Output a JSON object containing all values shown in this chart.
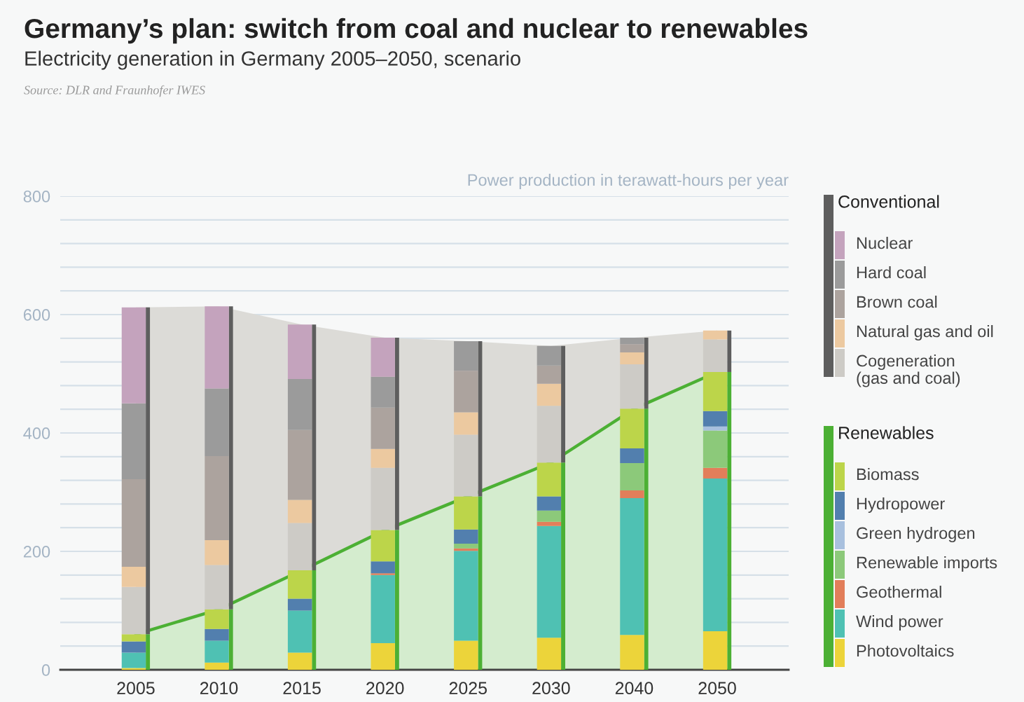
{
  "chart_data": {
    "type": "bar",
    "title": "Germany’s plan: switch from coal and nuclear to renewables",
    "subtitle": "Electricity generation in Germany 2005–2050, scenario",
    "annotations": [
      "Source: DLR and Fraunhofer IWES"
    ],
    "ylabel": "Power production in terawatt-hours per year",
    "categories": [
      "2005",
      "2010",
      "2015",
      "2020",
      "2025",
      "2030",
      "2040",
      "2050"
    ],
    "legend": "right",
    "grid": "y",
    "ylim": [
      0,
      800
    ],
    "yticks": [
      0,
      {
        "value": 40,
        "label": null
      },
      {
        "value": 80,
        "label": null
      },
      {
        "value": 120,
        "label": null
      },
      {
        "value": 160,
        "label": null
      },
      200,
      {
        "value": 240,
        "label": null
      },
      {
        "value": 280,
        "label": null
      },
      {
        "value": 320,
        "label": null
      },
      {
        "value": 360,
        "label": null
      },
      400,
      {
        "value": 440,
        "label": null
      },
      {
        "value": 480,
        "label": null
      },
      {
        "value": 520,
        "label": null
      },
      {
        "value": 560,
        "label": null
      },
      600,
      {
        "value": 640,
        "label": null
      },
      {
        "value": 680,
        "label": null
      },
      {
        "value": 720,
        "label": null
      },
      {
        "value": 760,
        "label": null
      },
      800
    ],
    "series": [
      {
        "type": "area",
        "color": "#dcdbd7",
        "values": [
          612,
          614,
          583,
          561,
          555,
          547,
          561,
          573
        ]
      },
      {
        "type": "area",
        "color": "#4cb034",
        "values": [
          60,
          102,
          168,
          236,
          293,
          350,
          441,
          503
        ]
      },
      {
        "name": "Renewables",
        "type": "bar",
        "color": "#4cb034",
        "values": [
          60,
          102,
          168,
          236,
          293,
          350,
          441,
          503
        ],
        "base": [
          0,
          0,
          0,
          0,
          0,
          0,
          0,
          0
        ]
      },
      {
        "name": "Photovoltaics",
        "color": "#ecd43a",
        "values": [
          3,
          12,
          29,
          45,
          49,
          54,
          59,
          65
        ],
        "base": [
          0,
          0,
          0,
          0,
          0,
          0,
          0,
          0
        ]
      },
      {
        "name": "Wind power",
        "color": "#4fc1b3",
        "values": [
          26,
          37,
          71,
          115,
          152,
          189,
          231,
          258
        ],
        "base": [
          3,
          12,
          29,
          45,
          49,
          54,
          59,
          65
        ]
      },
      {
        "name": "Geothermal",
        "color": "#e27e5a",
        "values": [
          null,
          null,
          null,
          3,
          4,
          7,
          13,
          18
        ],
        "base": [
          null,
          null,
          null,
          160,
          201,
          243,
          290,
          323
        ]
      },
      {
        "name": "Renewable imports",
        "color": "#8cc97a",
        "values": [
          null,
          null,
          null,
          null,
          8,
          19,
          46,
          63
        ],
        "base": [
          null,
          null,
          null,
          null,
          205,
          250,
          303,
          341
        ]
      },
      {
        "name": "Green hydrogen",
        "color": "#a8c0de",
        "values": [
          null,
          null,
          null,
          null,
          null,
          null,
          null,
          7
        ],
        "base": [
          null,
          null,
          null,
          null,
          null,
          null,
          null,
          404
        ]
      },
      {
        "name": "Hydropower",
        "color": "#527fae",
        "values": [
          19,
          20,
          20,
          20,
          24,
          24,
          25,
          26
        ],
        "base": [
          29,
          49,
          100,
          163,
          213,
          269,
          349,
          411
        ]
      },
      {
        "name": "Biomass",
        "color": "#bcd54a",
        "values": [
          12,
          33,
          48,
          53,
          56,
          57,
          67,
          66
        ],
        "base": [
          48,
          69,
          120,
          183,
          237,
          293,
          374,
          437
        ]
      },
      {
        "name": "Conventional",
        "type": "bar",
        "color": "#5e5e5e",
        "values": [
          552,
          512,
          415,
          325,
          262,
          197,
          120,
          70
        ],
        "base": [
          60,
          102,
          168,
          236,
          293,
          350,
          441,
          503
        ]
      },
      {
        "name": "Cogeneration\n(gas and coal)",
        "color": "#cdcbc6",
        "values": [
          80,
          75,
          80,
          105,
          104,
          96,
          75,
          55
        ],
        "base": [
          60,
          102,
          168,
          236,
          293,
          350,
          441,
          503
        ]
      },
      {
        "name": "Natural gas and oil",
        "color": "#ecc9a0",
        "values": [
          34,
          42,
          39,
          32,
          38,
          37,
          20,
          15
        ],
        "base": [
          140,
          177,
          248,
          341,
          397,
          446,
          516,
          558
        ]
      },
      {
        "name": "Brown coal",
        "color": "#aca39e",
        "values": [
          148,
          142,
          118,
          70,
          70,
          31,
          14,
          null
        ],
        "base": [
          174,
          219,
          287,
          373,
          435,
          483,
          536,
          null
        ]
      },
      {
        "name": "Hard coal",
        "color": "#9b9b9b",
        "values": [
          128,
          114,
          86,
          52,
          50,
          33,
          11,
          null
        ],
        "base": [
          322,
          361,
          405,
          443,
          505,
          514,
          550,
          null
        ]
      },
      {
        "name": "Nuclear",
        "color": "#c4a3bd",
        "values": [
          162,
          139,
          92,
          66,
          null,
          null,
          null,
          null
        ],
        "base": [
          450,
          475,
          491,
          495,
          null,
          null,
          null,
          null
        ]
      }
    ]
  }
}
